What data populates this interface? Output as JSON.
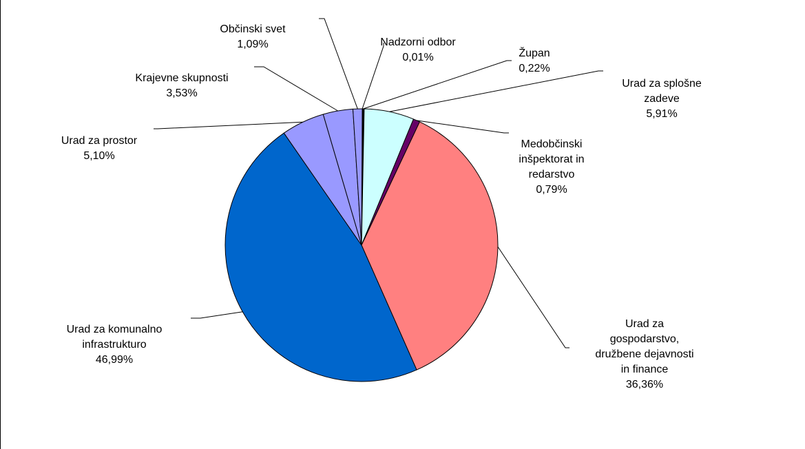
{
  "chart_data": {
    "type": "pie",
    "slices": [
      {
        "label": "Nadzorni  odbor",
        "value": 0.01,
        "value_label": "0,01%",
        "color": "#d9d9d9"
      },
      {
        "label": "Župan",
        "value": 0.22,
        "value_label": "0,22%",
        "color": "#000000"
      },
      {
        "label": "Urad  za  splošne\nzadeve",
        "value": 5.91,
        "value_label": "5,91%",
        "color": "#ccffff"
      },
      {
        "label": "Medobčinski\ninšpektorat  in\nredarstvo",
        "value": 0.79,
        "value_label": "0,79%",
        "color": "#660066"
      },
      {
        "label": "Urad  za\ngospodarstvo,\ndružbene  dejavnosti\nin finance",
        "value": 36.36,
        "value_label": "36,36%",
        "color": "#ff8080"
      },
      {
        "label": "Urad za komunalno\ninfrastrukturo",
        "value": 46.99,
        "value_label": "46,99%",
        "color": "#0066cc"
      },
      {
        "label": "Urad  za  prostor",
        "value": 5.1,
        "value_label": "5,10%",
        "color": "#9999ff"
      },
      {
        "label": "Krajevne  skupnosti",
        "value": 3.53,
        "value_label": "3,53%",
        "color": "#9999ff"
      },
      {
        "label": "Občinski  svet",
        "value": 1.09,
        "value_label": "1,09%",
        "color": "#9999ff"
      }
    ]
  }
}
